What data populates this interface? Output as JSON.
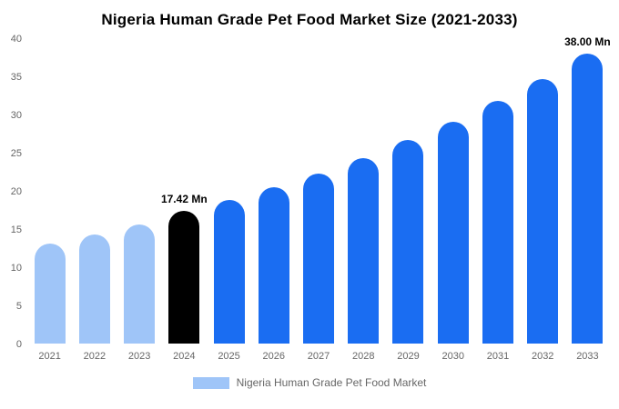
{
  "page": {
    "background": "#ffffff"
  },
  "chart_data": {
    "type": "bar",
    "title": "Nigeria Human Grade Pet Food Market Size (2021-2033)",
    "categories": [
      "2021",
      "2022",
      "2023",
      "2024",
      "2025",
      "2026",
      "2027",
      "2028",
      "2029",
      "2030",
      "2031",
      "2032",
      "2033"
    ],
    "values": [
      13.1,
      14.3,
      15.6,
      17.42,
      18.8,
      20.5,
      22.3,
      24.3,
      26.7,
      29.1,
      31.8,
      34.7,
      38.0
    ],
    "unit": "Mn",
    "xlabel": "",
    "ylabel": "",
    "ylim": [
      0,
      40
    ],
    "yticks": [
      0,
      5,
      10,
      15,
      20,
      25,
      30,
      35,
      40
    ],
    "grid": false,
    "bar_labels": [
      "",
      "",
      "",
      "17.42 Mn",
      "",
      "",
      "",
      "",
      "",
      "",
      "",
      "",
      "38.00 Mn"
    ],
    "colors": [
      "#9fc5f8",
      "#9fc5f8",
      "#9fc5f8",
      "#000000",
      "#1a6df2",
      "#1a6df2",
      "#1a6df2",
      "#1a6df2",
      "#1a6df2",
      "#1a6df2",
      "#1a6df2",
      "#1a6df2",
      "#1a6df2"
    ],
    "palette": {
      "historical": "#9fc5f8",
      "base_year": "#000000",
      "forecast": "#1a6df2"
    }
  },
  "legend": {
    "label": "Nigeria Human Grade Pet Food Market",
    "swatch_color": "#9fc5f8",
    "position": "bottom"
  }
}
